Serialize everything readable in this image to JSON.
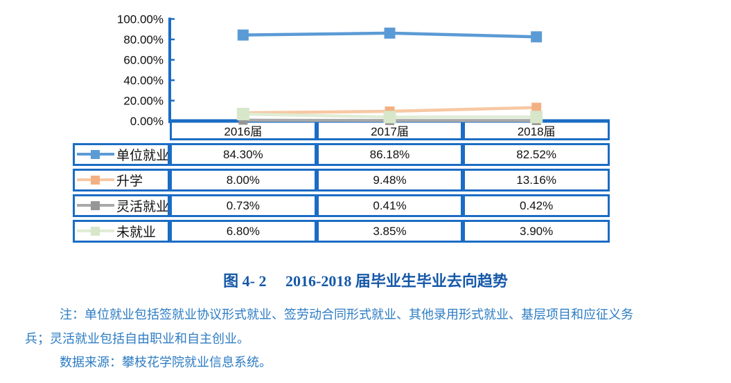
{
  "figure": {
    "caption": "图 4- 2　 2016-2018 届毕业生毕业去向趋势",
    "notes": [
      "注：单位就业包括签就业协议形式就业、签劳动合同形式就业、其他录用形式就业、基层项目和应征义务",
      "兵；灵活就业包括自由职业和自主创业。",
      "数据来源：攀枝花学院就业信息系统。"
    ]
  },
  "chart_data": {
    "type": "line",
    "title": "",
    "categories": [
      "2016届",
      "2017届",
      "2018届"
    ],
    "series": [
      {
        "key": "unit-employment",
        "name": "单位就业",
        "values": [
          84.3,
          86.18,
          82.52
        ],
        "labels": [
          "84.30%",
          "86.18%",
          "82.52%"
        ],
        "line_color": "#5B9BD5",
        "marker_color": "#5B9BD5"
      },
      {
        "key": "further-study",
        "name": "升学",
        "values": [
          8.0,
          9.48,
          13.16
        ],
        "labels": [
          "8.00%",
          "9.48%",
          "13.16%"
        ],
        "line_color": "#F7C8A4",
        "marker_color": "#F3B183"
      },
      {
        "key": "flexible-employment",
        "name": "灵活就业",
        "values": [
          0.73,
          0.41,
          0.42
        ],
        "labels": [
          "0.73%",
          "0.41%",
          "0.42%"
        ],
        "line_color": "#A9A9A9",
        "marker_color": "#969696"
      },
      {
        "key": "not-employed",
        "name": "未就业",
        "values": [
          6.8,
          3.85,
          3.9
        ],
        "labels": [
          "6.80%",
          "3.85%",
          "3.90%"
        ],
        "line_color": "#E0ECD5",
        "marker_color": "#D8E6C9"
      }
    ],
    "y_axis": {
      "ticks": [
        "100.00%",
        "80.00%",
        "60.00%",
        "40.00%",
        "20.00%",
        "0.00%"
      ],
      "min": 0,
      "max": 100
    },
    "grid": false,
    "legend_position": "table-left",
    "colors": {
      "axis": "#1B6CC4",
      "table_border": "#1B6CC4",
      "tick_text": "#0d0d0d"
    }
  }
}
